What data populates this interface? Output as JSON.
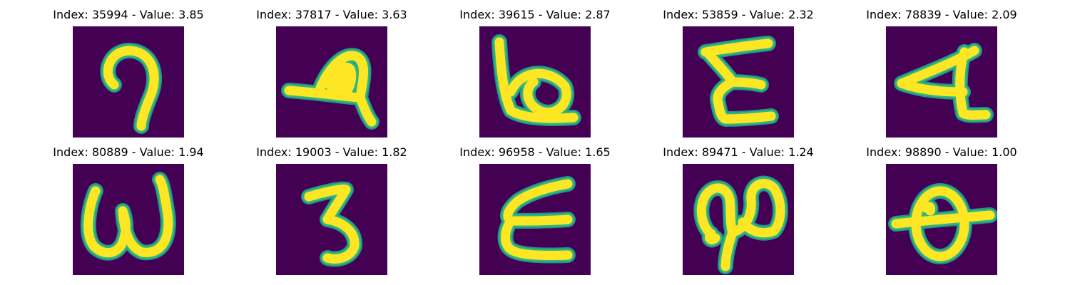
{
  "colors": {
    "background": "#440154",
    "stroke_core": "#fde725",
    "stroke_edge": "#35b779",
    "stroke_halo": "#21918c"
  },
  "panels": [
    {
      "title": "Index: 35994 - Value: 3.85",
      "glyph": "hook-9"
    },
    {
      "title": "Index: 37817 - Value: 3.63",
      "glyph": "slanted-A"
    },
    {
      "title": "Index: 39615 - Value: 2.87",
      "glyph": "b-loop"
    },
    {
      "title": "Index: 53859 - Value: 2.32",
      "glyph": "E-zigzag"
    },
    {
      "title": "Index: 78839 - Value: 2.09",
      "glyph": "A-rotated"
    },
    {
      "title": "Index: 80889 - Value: 1.94",
      "glyph": "w-curly"
    },
    {
      "title": "Index: 19003 - Value: 1.82",
      "glyph": "3-z"
    },
    {
      "title": "Index: 96958 - Value: 1.65",
      "glyph": "E-curved"
    },
    {
      "title": "Index: 89471 - Value: 1.24",
      "glyph": "loop-ligature"
    },
    {
      "title": "Index: 98890 - Value: 1.00",
      "glyph": "theta"
    }
  ]
}
